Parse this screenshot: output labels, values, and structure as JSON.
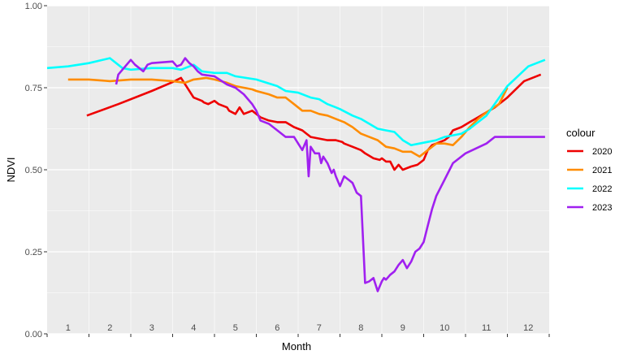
{
  "chart_data": {
    "type": "line",
    "xlabel": "Month",
    "ylabel": "NDVI",
    "xlim": [
      0.5,
      12.5
    ],
    "ylim": [
      0,
      1
    ],
    "yticks": [
      0,
      0.25,
      0.5,
      0.75,
      1
    ],
    "ytick_labels": [
      "0.00",
      "0.25",
      "0.50",
      "0.75",
      "1.00"
    ],
    "month_labels": [
      "1",
      "2",
      "3",
      "4",
      "5",
      "6",
      "7",
      "8",
      "9",
      "10",
      "11",
      "12"
    ],
    "grid": true,
    "legend": {
      "title": "colour",
      "placement": "right"
    },
    "series": [
      {
        "name": "2020",
        "color": "#ee0000",
        "x": [
          1.45,
          2.2,
          3.0,
          3.55,
          3.62,
          3.7,
          4.0,
          4.2,
          4.25,
          4.35,
          4.5,
          4.6,
          4.8,
          4.85,
          5.0,
          5.05,
          5.1,
          5.2,
          5.4,
          5.5,
          5.6,
          5.8,
          6.0,
          6.2,
          6.4,
          6.6,
          6.7,
          6.8,
          7.0,
          7.2,
          7.4,
          7.55,
          7.6,
          7.8,
          8.0,
          8.1,
          8.3,
          8.45,
          8.5,
          8.6,
          8.7,
          8.8,
          8.9,
          9.0,
          9.2,
          9.35,
          9.5,
          9.6,
          9.7,
          9.8,
          9.9,
          10.0,
          10.1,
          10.2,
          10.4,
          10.6,
          10.8,
          11.0,
          11.2,
          11.5,
          11.9,
          12.3
        ],
        "y": [
          0.665,
          0.7,
          0.74,
          0.77,
          0.775,
          0.78,
          0.72,
          0.71,
          0.705,
          0.7,
          0.71,
          0.7,
          0.69,
          0.68,
          0.67,
          0.68,
          0.69,
          0.67,
          0.68,
          0.67,
          0.66,
          0.65,
          0.645,
          0.645,
          0.63,
          0.62,
          0.61,
          0.6,
          0.595,
          0.59,
          0.59,
          0.585,
          0.58,
          0.57,
          0.56,
          0.55,
          0.535,
          0.53,
          0.535,
          0.525,
          0.525,
          0.5,
          0.515,
          0.5,
          0.51,
          0.515,
          0.53,
          0.56,
          0.575,
          0.58,
          0.585,
          0.59,
          0.6,
          0.62,
          0.63,
          0.645,
          0.66,
          0.675,
          0.69,
          0.72,
          0.77,
          0.79
        ]
      },
      {
        "name": "2021",
        "color": "#ff8c00",
        "x": [
          1.0,
          1.5,
          2.0,
          2.5,
          3.0,
          3.5,
          3.8,
          4.0,
          4.3,
          4.5,
          4.8,
          5.0,
          5.2,
          5.4,
          5.5,
          5.8,
          6.0,
          6.2,
          6.4,
          6.6,
          6.8,
          7.0,
          7.2,
          7.4,
          7.6,
          7.8,
          8.0,
          8.2,
          8.4,
          8.6,
          8.8,
          9.0,
          9.2,
          9.4,
          9.6,
          9.8,
          10.0,
          10.2,
          10.4,
          10.6,
          10.8,
          11.0,
          11.3,
          11.5
        ],
        "y": [
          0.775,
          0.775,
          0.77,
          0.775,
          0.775,
          0.77,
          0.765,
          0.775,
          0.78,
          0.775,
          0.765,
          0.755,
          0.75,
          0.745,
          0.74,
          0.73,
          0.72,
          0.72,
          0.7,
          0.68,
          0.68,
          0.67,
          0.665,
          0.655,
          0.645,
          0.63,
          0.61,
          0.6,
          0.59,
          0.57,
          0.565,
          0.555,
          0.555,
          0.54,
          0.56,
          0.58,
          0.58,
          0.575,
          0.6,
          0.63,
          0.655,
          0.675,
          0.7,
          0.75
        ]
      },
      {
        "name": "2022",
        "color": "#00ffff",
        "x": [
          0.5,
          1.0,
          1.5,
          2.0,
          2.3,
          2.5,
          3.0,
          3.5,
          3.7,
          4.0,
          4.2,
          4.5,
          4.8,
          5.0,
          5.5,
          6.0,
          6.2,
          6.5,
          6.8,
          7.0,
          7.2,
          7.4,
          7.5,
          7.8,
          8.0,
          8.2,
          8.4,
          8.6,
          8.8,
          9.0,
          9.2,
          9.4,
          9.6,
          9.8,
          10.0,
          10.2,
          10.4,
          10.6,
          10.8,
          11.0,
          11.5,
          12.0,
          12.3,
          12.4
        ],
        "y": [
          0.81,
          0.815,
          0.825,
          0.84,
          0.81,
          0.805,
          0.81,
          0.81,
          0.805,
          0.82,
          0.8,
          0.795,
          0.795,
          0.785,
          0.775,
          0.755,
          0.74,
          0.735,
          0.72,
          0.715,
          0.7,
          0.69,
          0.685,
          0.665,
          0.655,
          0.64,
          0.625,
          0.62,
          0.615,
          0.59,
          0.575,
          0.58,
          0.585,
          0.59,
          0.6,
          0.605,
          0.61,
          0.625,
          0.645,
          0.665,
          0.755,
          0.815,
          0.83,
          0.835
        ]
      },
      {
        "name": "2023",
        "color": "#a020f0",
        "x": [
          2.15,
          2.2,
          2.3,
          2.5,
          2.6,
          2.8,
          2.9,
          3.0,
          3.5,
          3.6,
          3.7,
          3.8,
          3.9,
          4.0,
          4.1,
          4.2,
          4.5,
          4.8,
          5.0,
          5.2,
          5.4,
          5.5,
          5.6,
          5.8,
          6.0,
          6.2,
          6.4,
          6.5,
          6.6,
          6.7,
          6.75,
          6.8,
          6.9,
          7.0,
          7.05,
          7.1,
          7.2,
          7.3,
          7.35,
          7.4,
          7.5,
          7.6,
          7.7,
          7.8,
          7.9,
          8.0,
          8.1,
          8.2,
          8.3,
          8.4,
          8.5,
          8.55,
          8.6,
          8.7,
          8.8,
          8.9,
          9.0,
          9.1,
          9.2,
          9.3,
          9.4,
          9.5,
          9.6,
          9.7,
          9.8,
          10.0,
          10.2,
          10.5,
          11.0,
          11.2,
          11.5,
          11.6,
          11.8,
          12.0,
          12.4
        ],
        "y": [
          0.76,
          0.79,
          0.805,
          0.835,
          0.82,
          0.8,
          0.82,
          0.825,
          0.83,
          0.815,
          0.82,
          0.84,
          0.825,
          0.815,
          0.8,
          0.79,
          0.785,
          0.76,
          0.75,
          0.73,
          0.7,
          0.68,
          0.65,
          0.64,
          0.62,
          0.6,
          0.6,
          0.58,
          0.56,
          0.59,
          0.48,
          0.57,
          0.55,
          0.55,
          0.52,
          0.54,
          0.52,
          0.49,
          0.5,
          0.48,
          0.45,
          0.48,
          0.47,
          0.46,
          0.43,
          0.42,
          0.155,
          0.16,
          0.17,
          0.13,
          0.16,
          0.17,
          0.165,
          0.18,
          0.19,
          0.21,
          0.225,
          0.2,
          0.22,
          0.25,
          0.26,
          0.28,
          0.33,
          0.38,
          0.42,
          0.47,
          0.52,
          0.55,
          0.58,
          0.6,
          0.6,
          0.6,
          0.6,
          0.6,
          0.6
        ]
      }
    ]
  }
}
